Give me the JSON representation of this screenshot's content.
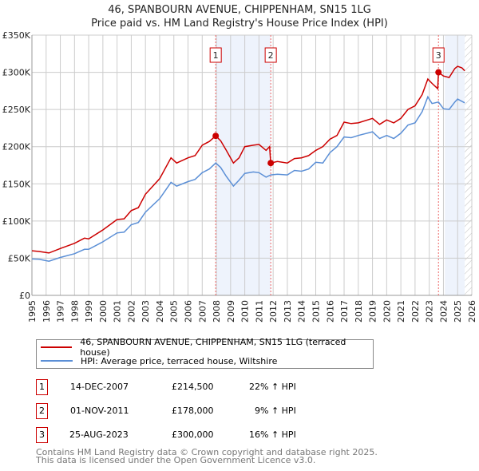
{
  "title": "46, SPANBOURN AVENUE, CHIPPENHAM, SN15 1LG",
  "subtitle": "Price paid vs. HM Land Registry's House Price Index (HPI)",
  "colors": {
    "price": "#cc0000",
    "hpi": "#5b8fd6",
    "shade": "#eef3fc",
    "grid": "#cccccc"
  },
  "chart_data": {
    "type": "line",
    "title": "46, SPANBOURN AVENUE, CHIPPENHAM, SN15 1LG",
    "xlim": [
      1995,
      2026
    ],
    "ylim": [
      0,
      350000
    ],
    "y_ticks": [
      0,
      50000,
      100000,
      150000,
      200000,
      250000,
      300000,
      350000
    ],
    "y_tick_labels": [
      "£0",
      "£50K",
      "£100K",
      "£150K",
      "£200K",
      "£250K",
      "£300K",
      "£350K"
    ],
    "x_ticks": [
      "1995",
      "1996",
      "1997",
      "1998",
      "1999",
      "2000",
      "2001",
      "2002",
      "2003",
      "2004",
      "2005",
      "2006",
      "2007",
      "2008",
      "2009",
      "2010",
      "2011",
      "2012",
      "2013",
      "2014",
      "2015",
      "2016",
      "2017",
      "2018",
      "2019",
      "2020",
      "2021",
      "2022",
      "2023",
      "2024",
      "2025",
      "2026"
    ],
    "series": [
      {
        "name": "46, SPANBOURN AVENUE, CHIPPENHAM, SN15 1LG (terraced house)",
        "color": "#cc0000",
        "x": [
          1995,
          1995.5,
          1996.2,
          1997,
          1998,
          1998.7,
          1999,
          2000,
          2001,
          2001.5,
          2002,
          2002.5,
          2003,
          2004,
          2004.8,
          2005.2,
          2006,
          2006.5,
          2007,
          2007.5,
          2007.95,
          2008.3,
          2008.7,
          2009.2,
          2009.6,
          2010,
          2010.6,
          2011,
          2011.5,
          2011.75,
          2011.83,
          2012.3,
          2013,
          2013.5,
          2014,
          2014.5,
          2015,
          2015.5,
          2016,
          2016.5,
          2017,
          2017.5,
          2018,
          2019,
          2019.5,
          2020,
          2020.5,
          2021,
          2021.5,
          2022,
          2022.5,
          2022.9,
          2023.2,
          2023.6,
          2023.65,
          2024,
          2024.4,
          2024.8,
          2025,
          2025.3,
          2025.5
        ],
        "values": [
          60000,
          59000,
          57000,
          63000,
          70000,
          77000,
          76000,
          88000,
          102000,
          103000,
          114000,
          118000,
          136000,
          157000,
          185000,
          178000,
          185000,
          188000,
          202000,
          207000,
          214500,
          208000,
          195000,
          178000,
          185000,
          200000,
          202000,
          203000,
          195000,
          200000,
          178000,
          180000,
          178000,
          184000,
          185000,
          188000,
          195000,
          200000,
          210000,
          215000,
          233000,
          231000,
          232000,
          238000,
          230000,
          236000,
          232000,
          238000,
          250000,
          255000,
          270000,
          291000,
          285000,
          278000,
          300000,
          295000,
          293000,
          305000,
          308000,
          306000,
          302000
        ]
      },
      {
        "name": "HPI: Average price, terraced house, Wiltshire",
        "color": "#5b8fd6",
        "x": [
          1995,
          1995.5,
          1996.2,
          1997,
          1998,
          1998.7,
          1999,
          2000,
          2001,
          2001.5,
          2002,
          2002.5,
          2003,
          2004,
          2004.8,
          2005.2,
          2006,
          2006.5,
          2007,
          2007.5,
          2007.95,
          2008.3,
          2008.7,
          2009.2,
          2009.6,
          2010,
          2010.6,
          2011,
          2011.5,
          2011.83,
          2012.3,
          2013,
          2013.5,
          2014,
          2014.5,
          2015,
          2015.5,
          2016,
          2016.5,
          2017,
          2017.5,
          2018,
          2019,
          2019.5,
          2020,
          2020.5,
          2021,
          2021.5,
          2022,
          2022.5,
          2022.9,
          2023.2,
          2023.65,
          2024,
          2024.4,
          2024.8,
          2025,
          2025.3,
          2025.5
        ],
        "values": [
          49000,
          48500,
          46000,
          51000,
          56000,
          62000,
          62000,
          72000,
          84000,
          85000,
          95000,
          98000,
          112000,
          130000,
          152000,
          147000,
          153000,
          156000,
          165000,
          170000,
          178000,
          172000,
          160000,
          147000,
          155000,
          164000,
          166000,
          165000,
          159000,
          162000,
          163000,
          162000,
          168000,
          167000,
          170000,
          179000,
          178000,
          192000,
          200000,
          213000,
          212000,
          215000,
          220000,
          211000,
          215000,
          211000,
          218000,
          229000,
          232000,
          247000,
          267000,
          258000,
          260000,
          251000,
          250000,
          260000,
          264000,
          261000,
          259000
        ]
      }
    ],
    "sales": [
      {
        "label": "1",
        "date": "14-DEC-2007",
        "x": 2007.95,
        "price": "£214,500",
        "value": 214500,
        "hpi_delta": "22% ↑ HPI"
      },
      {
        "label": "2",
        "date": "01-NOV-2011",
        "x": 2011.83,
        "price": "£178,000",
        "value": 178000,
        "hpi_delta": "9% ↑ HPI"
      },
      {
        "label": "3",
        "date": "25-AUG-2023",
        "x": 2023.65,
        "price": "£300,000",
        "value": 300000,
        "hpi_delta": "16% ↑ HPI"
      }
    ],
    "shaded_ranges": [
      [
        2007.95,
        2011.83
      ],
      [
        2024.1,
        2025.5
      ]
    ],
    "hatched_range": [
      2025.5,
      2026
    ],
    "legend_position": "below"
  },
  "footer": {
    "line1": "Contains HM Land Registry data © Crown copyright and database right 2025.",
    "line2": "This data is licensed under the Open Government Licence v3.0."
  }
}
